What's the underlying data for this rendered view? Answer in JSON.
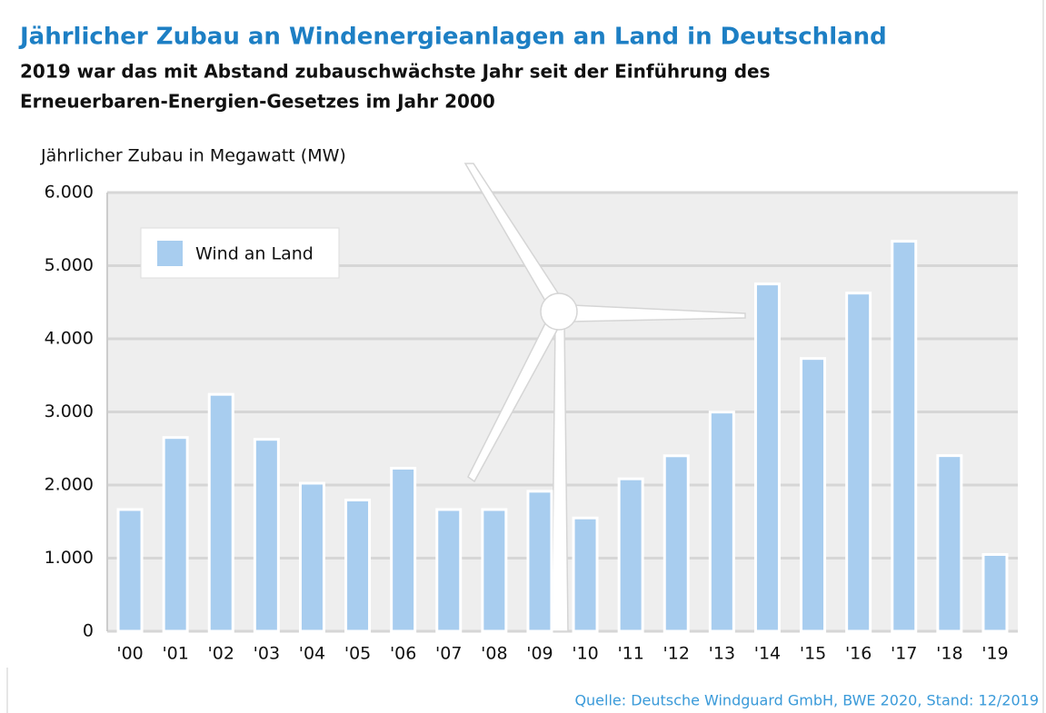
{
  "chart_data": {
    "type": "bar",
    "title": "Jährlicher Zubau an Windenergieanlagen an Land in Deutschland",
    "subtitle": [
      "2019 war das mit Abstand zubauschwächste Jahr seit der Einführung des",
      "Erneuerbaren-Energien-Gesetzes im Jahr 2000"
    ],
    "y_label": "Jährlicher Zubau in Megawatt (MW)",
    "source": "Quelle: Deutsche Windguard GmbH, BWE 2020, Stand: 12/2019",
    "categories": [
      "'00",
      "'01",
      "'02",
      "'03",
      "'04",
      "'05",
      "'06",
      "'07",
      "'08",
      "'09",
      "'10",
      "'11",
      "'12",
      "'13",
      "'14",
      "'15",
      "'16",
      "'17",
      "'18",
      "'19"
    ],
    "series": [
      {
        "name": "Wind an Land",
        "color": "#a8cdef",
        "values": [
          1665,
          2650,
          3240,
          2625,
          2025,
          1795,
          2230,
          1665,
          1665,
          1915,
          1550,
          2085,
          2400,
          2998,
          4750,
          3731,
          4625,
          5334,
          2402,
          1050
        ]
      }
    ],
    "ylim": [
      0,
      6000
    ],
    "yticks": [
      0,
      {
        "value": 1000,
        "label": "1.000"
      },
      {
        "value": 2000,
        "label": "2.000"
      },
      {
        "value": 3000,
        "label": "3.000"
      },
      {
        "value": 4000,
        "label": "4.000"
      },
      {
        "value": 5000,
        "label": "5.000"
      },
      {
        "value": 6000,
        "label": "6.000"
      }
    ],
    "grid": true,
    "legend": "upper left"
  }
}
